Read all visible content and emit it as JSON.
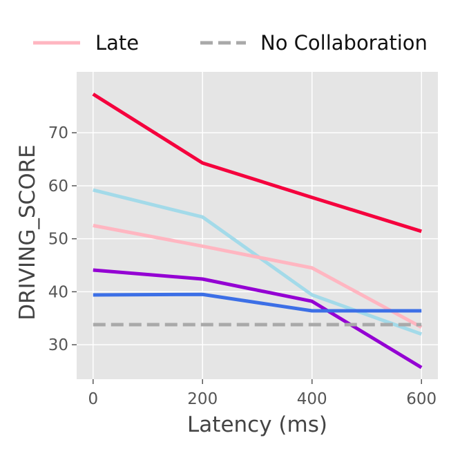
{
  "chart_data": {
    "type": "line",
    "xlabel": "Latency (ms)",
    "ylabel": "DRIVING_SCORE",
    "x": [
      0,
      200,
      400,
      600
    ],
    "xticks": [
      "0",
      "200",
      "400",
      "600"
    ],
    "yticks": [
      "30",
      "40",
      "50",
      "60",
      "70"
    ],
    "xlim": [
      -30,
      630
    ],
    "ylim": [
      23.5,
      81.5
    ],
    "grid": true,
    "legend": {
      "position": "top",
      "entries": [
        {
          "name": "Late",
          "color": "#ffb6c1",
          "dashed": false
        },
        {
          "name": "No Collaboration",
          "color": "#a9a9a9",
          "dashed": true
        }
      ]
    },
    "series": [
      {
        "color": "#f5003d",
        "values": [
          77.3,
          64.3,
          57.8,
          51.4
        ]
      },
      {
        "color": "#a3dae9",
        "values": [
          59.2,
          54.1,
          39.4,
          32.0
        ]
      },
      {
        "name": "Late",
        "color": "#ffb6c1",
        "values": [
          52.5,
          48.6,
          44.5,
          33.3
        ]
      },
      {
        "color": "#9400d3",
        "values": [
          44.1,
          42.4,
          38.2,
          25.7
        ]
      },
      {
        "color": "#3c6fe6",
        "values": [
          39.4,
          39.5,
          36.4,
          36.4
        ]
      },
      {
        "name": "No Collaboration",
        "color": "#a9a9a9",
        "dashed": true,
        "values": [
          33.8,
          33.8,
          33.8,
          33.8
        ]
      }
    ]
  }
}
